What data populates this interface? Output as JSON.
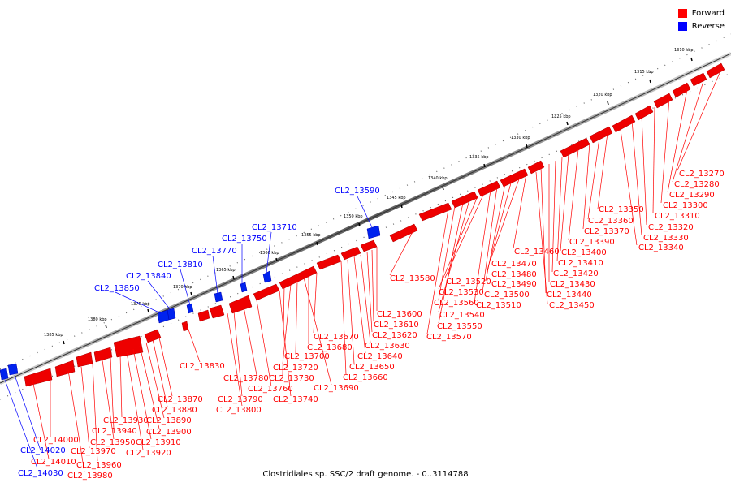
{
  "legend": {
    "forward_label": "Forward",
    "reverse_label": "Reverse",
    "forward_color": "#ff0000",
    "reverse_color": "#0000ff"
  },
  "caption": "Clostridiales sp. SSC/2 draft genome. - 0..3114788",
  "ticks": [
    {
      "kbp": 1310,
      "label": "1310 kbp"
    },
    {
      "kbp": 1315,
      "label": "1315 kbp"
    },
    {
      "kbp": 1320,
      "label": "1320 kbp"
    },
    {
      "kbp": 1325,
      "label": "1325 kbp"
    },
    {
      "kbp": 1330,
      "label": "1330 kbp"
    },
    {
      "kbp": 1335,
      "label": "1335 kbp"
    },
    {
      "kbp": 1340,
      "label": "1340 kbp"
    },
    {
      "kbp": 1345,
      "label": "1345 kbp"
    },
    {
      "kbp": 1350,
      "label": "1350 kbp"
    },
    {
      "kbp": 1355,
      "label": "1355 kbp"
    },
    {
      "kbp": 1360,
      "label": "1360 kbp"
    },
    {
      "kbp": 1365,
      "label": "1365 kbp"
    },
    {
      "kbp": 1370,
      "label": "1370 kbp"
    },
    {
      "kbp": 1375,
      "label": "1375 kbp"
    },
    {
      "kbp": 1380,
      "label": "1380 kbp"
    },
    {
      "kbp": 1385,
      "label": "1385 kbp"
    }
  ],
  "forward_labels": [
    "CL2_13270",
    "CL2_13280",
    "CL2_13290",
    "CL2_13300",
    "CL2_13310",
    "CL2_13320",
    "CL2_13330",
    "CL2_13340",
    "CL2_13350",
    "CL2_13360",
    "CL2_13370",
    "CL2_13390",
    "CL2_13400",
    "CL2_13410",
    "CL2_13420",
    "CL2_13430",
    "CL2_13440",
    "CL2_13450",
    "CL2_13460",
    "CL2_13470",
    "CL2_13480",
    "CL2_13490",
    "CL2_13500",
    "CL2_13510",
    "CL2_13520",
    "CL2_13530",
    "CL2_13540",
    "CL2_13550",
    "CL2_13560",
    "CL2_13570",
    "CL2_13580",
    "CL2_13600",
    "CL2_13610",
    "CL2_13620",
    "CL2_13630",
    "CL2_13640",
    "CL2_13650",
    "CL2_13660",
    "CL2_13670",
    "CL2_13680",
    "CL2_13690",
    "CL2_13700",
    "CL2_13720",
    "CL2_13730",
    "CL2_13740",
    "CL2_13760",
    "CL2_13780",
    "CL2_13790",
    "CL2_13800",
    "CL2_13830",
    "CL2_13870",
    "CL2_13880",
    "CL2_13890",
    "CL2_13900",
    "CL2_13910",
    "CL2_13920",
    "CL2_13930",
    "CL2_13940",
    "CL2_13950",
    "CL2_13960",
    "CL2_13970",
    "CL2_13980",
    "CL2_14000",
    "CL2_14010"
  ],
  "reverse_labels": [
    "CL2_13590",
    "CL2_13710",
    "CL2_13750",
    "CL2_13770",
    "CL2_13810",
    "CL2_13840",
    "CL2_13850",
    "CL2_14020",
    "CL2_14030"
  ]
}
